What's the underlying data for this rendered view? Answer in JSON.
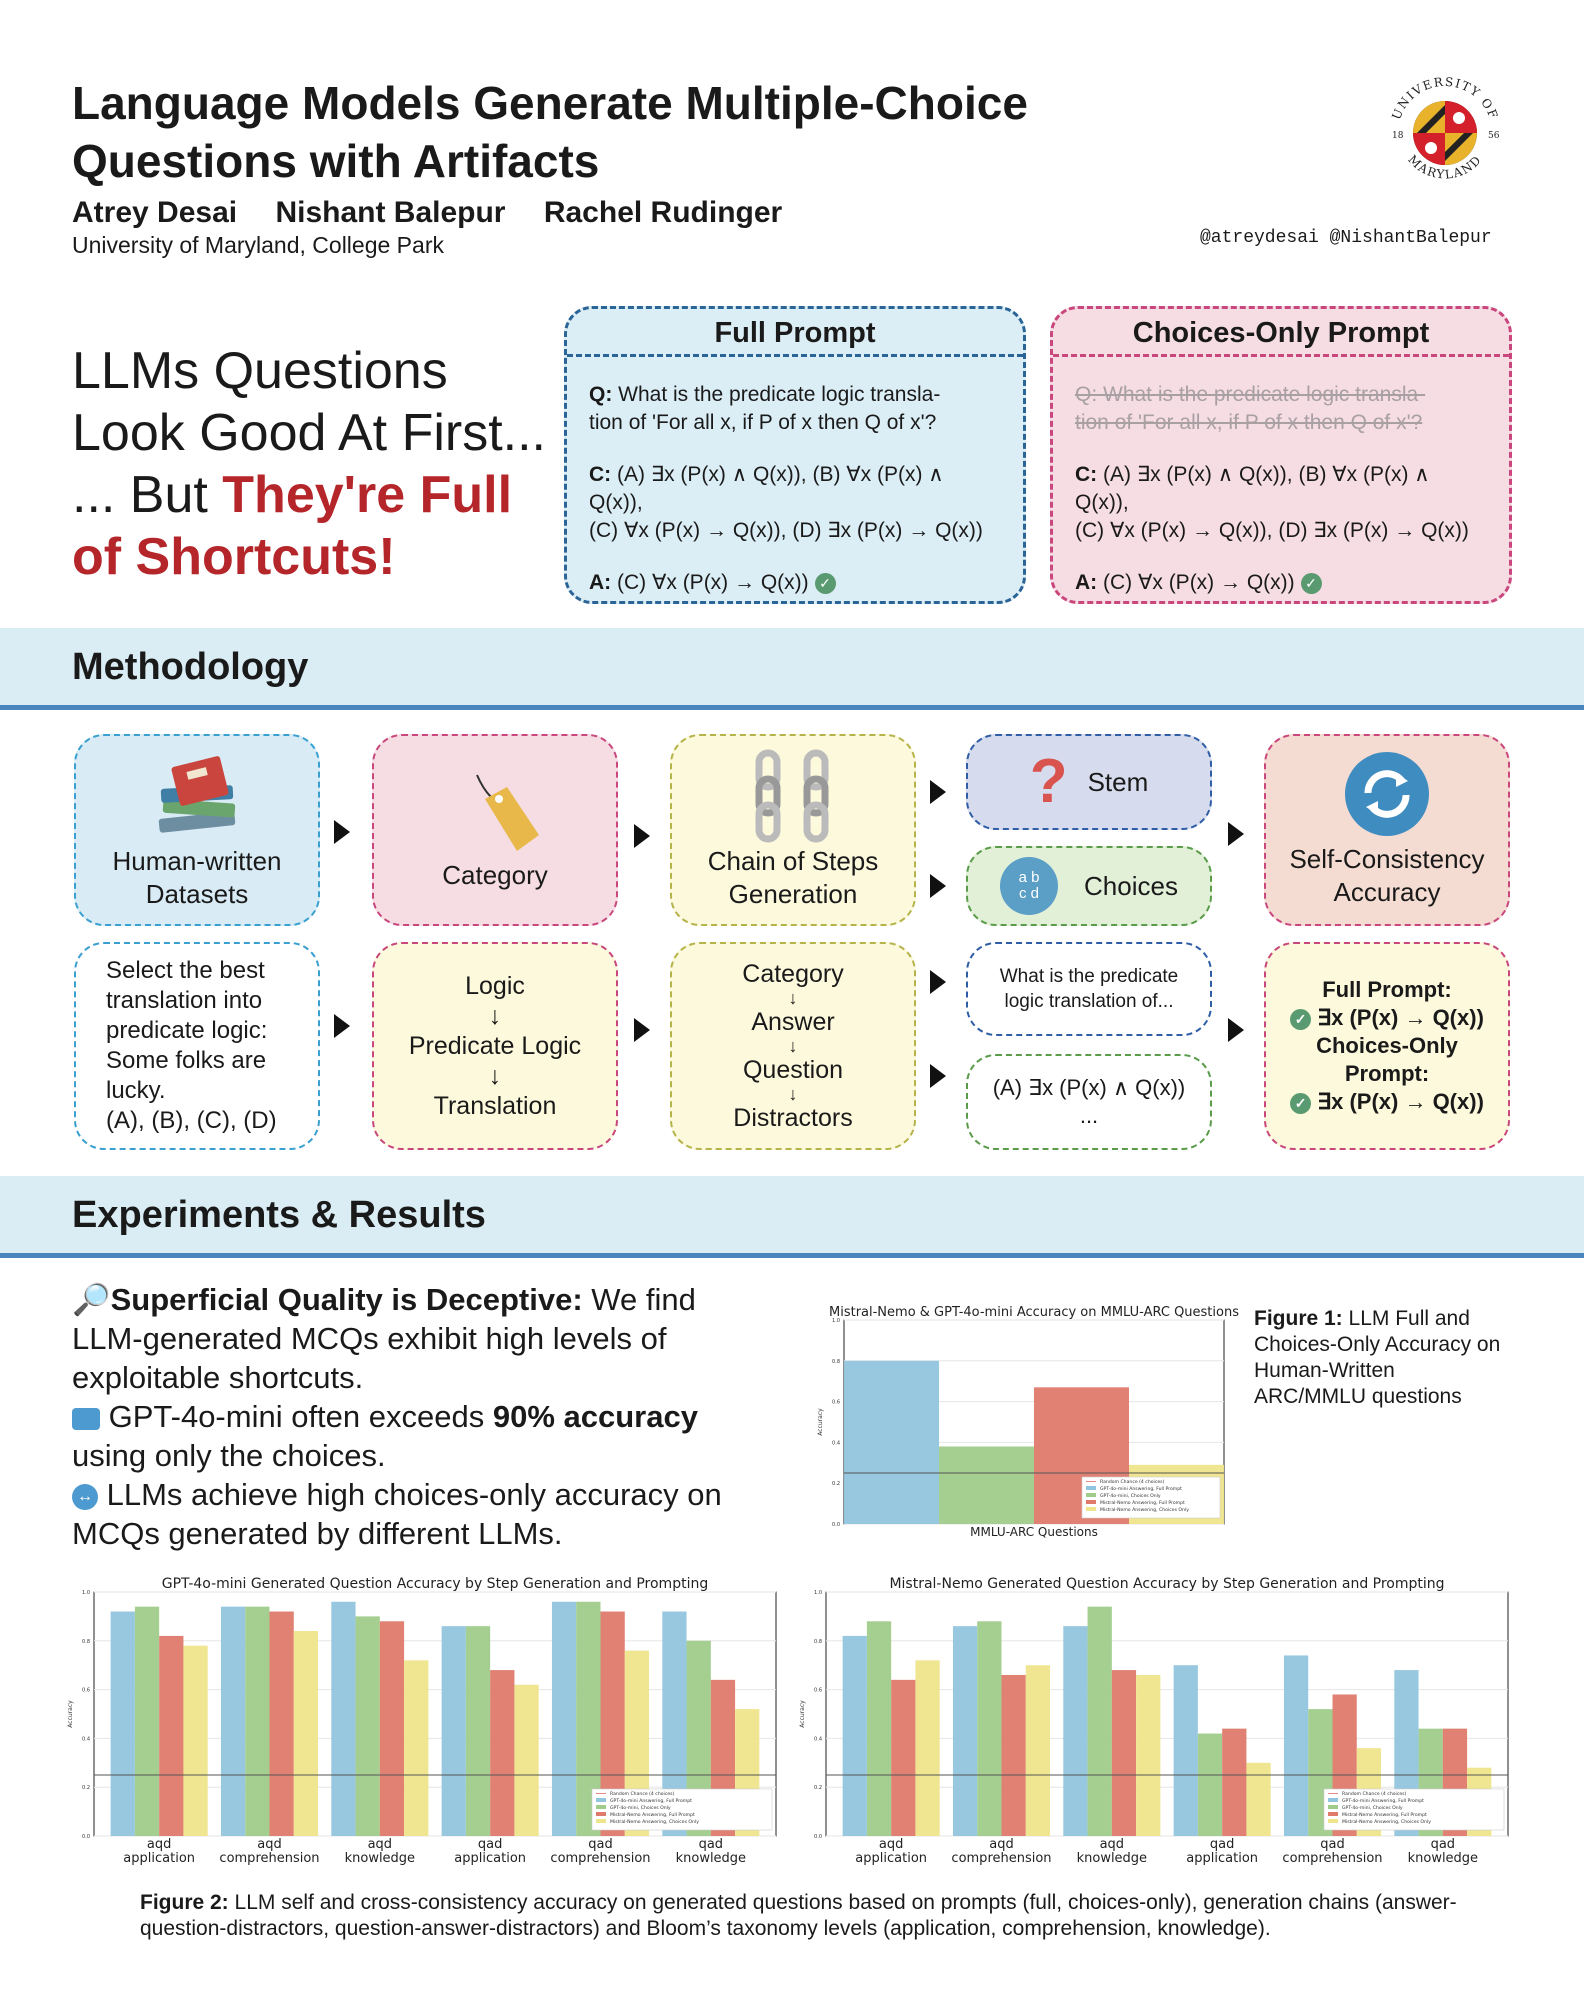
{
  "header": {
    "title_line1": "Language Models Generate Multiple-Choice",
    "title_line2": "Questions with Artifacts",
    "authors": [
      "Atrey Desai",
      "Nishant Balepur",
      "Rachel Rudinger"
    ],
    "affiliation": "University of Maryland, College Park",
    "handles": "@atreydesai @NishantBalepur",
    "seal": {
      "top": "UNIVERSITY OF",
      "bottom": "MARYLAND",
      "left_year": "18",
      "right_year": "56"
    }
  },
  "hook": {
    "line1": "LLMs Questions",
    "line2": "Look Good At First...",
    "line3_plain": "... But ",
    "line3_red": "They're Full",
    "line4_red": "of Shortcuts!"
  },
  "full_prompt": {
    "heading": "Full Prompt",
    "q_label": "Q:",
    "q_text_1": " What is the predicate logic transla-",
    "q_text_2": "tion of 'For all x, if P of x then Q of x'?",
    "c_label": "C:",
    "c_text_1": " (A) ∃x (P(x) ∧ Q(x)), (B) ∀x (P(x) ∧ Q(x)),",
    "c_text_2": "(C) ∀x (P(x) → Q(x)), (D) ∃x (P(x) → Q(x))",
    "a_label": "A:",
    "a_text": " (C) ∀x (P(x) → Q(x))"
  },
  "choices_prompt": {
    "heading": "Choices-Only Prompt",
    "q_line1": "Q: What is the predicate logic transla-",
    "q_line2": "tion of 'For all x, if P of x then Q of x'?",
    "c_label": "C:",
    "c_text_1": " (A) ∃x (P(x) ∧ Q(x)), (B) ∀x (P(x) ∧ Q(x)),",
    "c_text_2": "(C) ∀x (P(x) → Q(x)), (D) ∃x (P(x) → Q(x))",
    "a_label": "A:",
    "a_text": " (C) ∀x (P(x) → Q(x))"
  },
  "methodology": {
    "heading": "Methodology",
    "top": {
      "datasets_1": "Human-written",
      "datasets_2": "Datasets",
      "category": "Category",
      "chain_1": "Chain of Steps",
      "chain_2": "Generation",
      "stem": "Stem",
      "choices": "Choices",
      "choices_icon_1": "a b",
      "choices_icon_2": "c d",
      "sc_1": "Self-Consistency",
      "sc_2": "Accuracy"
    },
    "bottom": {
      "example_lines": [
        "Select the best",
        "translation into",
        "predicate logic:",
        "Some folks are",
        "lucky.",
        "(A), (B), (C), (D)"
      ],
      "cat_chain": [
        "Logic",
        "Predicate Logic",
        "Translation"
      ],
      "step_chain": [
        "Category",
        "Answer",
        "Question",
        "Distractors"
      ],
      "stem_ex_1": "What is the predicate",
      "stem_ex_2": "logic translation of...",
      "choice_ex_1": "(A) ∃x (P(x) ∧ Q(x))",
      "choice_ex_2": "...",
      "res_full_label": "Full Prompt:",
      "res_full_val": " ∃x (P(x) → Q(x))",
      "res_co_label_1": "Choices-Only",
      "res_co_label_2": "Prompt:",
      "res_co_val": " ∃x (P(x) → Q(x))"
    }
  },
  "results": {
    "heading": "Experiments & Results",
    "p1_bold": "Superficial Quality is Deceptive:",
    "p1_text": " We find LLM-generated MCQs exhibit high levels of exploitable shortcuts.",
    "p2_a": " GPT-4o-mini often exceeds ",
    "p2_bold": "90% accuracy",
    "p2_b": " using only the choices.",
    "p3": " LLMs achieve high choices-only accuracy on MCQs generated by different LLMs."
  },
  "fig1_caption": {
    "label": "Figure 1:",
    "text": " LLM Full and Choices-Only Accuracy on Human-Written ARC/MMLU questions"
  },
  "fig2_caption": {
    "label": "Figure 2:",
    "text": " LLM self and cross-consistency accuracy on generated questions based on prompts (full, choices-only), generation chains (answer-question-distractors, question-answer-distractors) and Bloom’s taxonomy levels (application, comprehension, knowledge)."
  },
  "colors": {
    "blue": "#92c5de",
    "green": "#9fcc8a",
    "red": "#df7a6c",
    "yellow": "#efe58c"
  },
  "chart_data": [
    {
      "type": "bar",
      "title": "Mistral-Nemo & GPT-4o-mini Accuracy on MMLU-ARC Questions",
      "xlabel": "MMLU-ARC Questions",
      "ylabel": "Accuracy",
      "ylim": [
        0,
        1.0
      ],
      "yticks": [
        "0.0",
        "0.2",
        "0.4",
        "0.6",
        "0.8",
        "1.0"
      ],
      "baseline": 0.25,
      "categories": [
        ""
      ],
      "legend": [
        "Random Chance (4 choices)",
        "GPT-4o-mini Answering, Full Prompt",
        "GPT-4o-mini, Choices Only",
        "Mistral-Nemo Answering, Full Prompt",
        "Mistral-Nemo Answering, Choices Only"
      ],
      "series": [
        {
          "name": "GPT-4o-mini Answering, Full Prompt",
          "values": [
            0.8
          ]
        },
        {
          "name": "GPT-4o-mini, Choices Only",
          "values": [
            0.38
          ]
        },
        {
          "name": "Mistral-Nemo Answering, Full Prompt",
          "values": [
            0.67
          ]
        },
        {
          "name": "Mistral-Nemo Answering, Choices Only",
          "values": [
            0.29
          ]
        }
      ]
    },
    {
      "type": "bar",
      "title": "GPT-4o-mini Generated Question Accuracy by Step Generation and Prompting",
      "xlabel": "",
      "ylabel": "Accuracy",
      "ylim": [
        0,
        1.0
      ],
      "yticks": [
        "0.0",
        "0.2",
        "0.4",
        "0.6",
        "0.8",
        "1.0"
      ],
      "baseline": 0.25,
      "categories": [
        [
          "aqd",
          "application"
        ],
        [
          "aqd",
          "comprehension"
        ],
        [
          "aqd",
          "knowledge"
        ],
        [
          "qad",
          "application"
        ],
        [
          "qad",
          "comprehension"
        ],
        [
          "qad",
          "knowledge"
        ]
      ],
      "legend": [
        "Random Chance (4 choices)",
        "GPT-4o-mini Answering, Full Prompt",
        "GPT-4o-mini, Choices Only",
        "Mistral-Nemo Answering, Full Prompt",
        "Mistral-Nemo Answering, Choices Only"
      ],
      "series": [
        {
          "name": "GPT-4o-mini Answering, Full Prompt",
          "values": [
            0.92,
            0.94,
            0.96,
            0.86,
            0.96,
            0.92
          ]
        },
        {
          "name": "GPT-4o-mini, Choices Only",
          "values": [
            0.94,
            0.94,
            0.9,
            0.86,
            0.96,
            0.8
          ]
        },
        {
          "name": "Mistral-Nemo Answering, Full Prompt",
          "values": [
            0.82,
            0.92,
            0.88,
            0.68,
            0.92,
            0.64
          ]
        },
        {
          "name": "Mistral-Nemo Answering, Choices Only",
          "values": [
            0.78,
            0.84,
            0.72,
            0.62,
            0.76,
            0.52
          ]
        }
      ]
    },
    {
      "type": "bar",
      "title": "Mistral-Nemo Generated Question Accuracy by Step Generation and Prompting",
      "xlabel": "",
      "ylabel": "Accuracy",
      "ylim": [
        0,
        1.0
      ],
      "yticks": [
        "0.0",
        "0.2",
        "0.4",
        "0.6",
        "0.8",
        "1.0"
      ],
      "baseline": 0.25,
      "categories": [
        [
          "aqd",
          "application"
        ],
        [
          "aqd",
          "comprehension"
        ],
        [
          "aqd",
          "knowledge"
        ],
        [
          "qad",
          "application"
        ],
        [
          "qad",
          "comprehension"
        ],
        [
          "qad",
          "knowledge"
        ]
      ],
      "legend": [
        "Random Chance (4 choices)",
        "GPT-4o-mini Answering, Full Prompt",
        "GPT-4o-mini, Choices Only",
        "Mistral-Nemo Answering, Full Prompt",
        "Mistral-Nemo Answering, Choices Only"
      ],
      "series": [
        {
          "name": "GPT-4o-mini Answering, Full Prompt",
          "values": [
            0.82,
            0.86,
            0.86,
            0.7,
            0.74,
            0.68
          ]
        },
        {
          "name": "GPT-4o-mini, Choices Only",
          "values": [
            0.88,
            0.88,
            0.94,
            0.42,
            0.52,
            0.44
          ]
        },
        {
          "name": "Mistral-Nemo Answering, Full Prompt",
          "values": [
            0.64,
            0.66,
            0.68,
            0.44,
            0.58,
            0.44
          ]
        },
        {
          "name": "Mistral-Nemo Answering, Choices Only",
          "values": [
            0.72,
            0.7,
            0.66,
            0.3,
            0.36,
            0.28
          ]
        }
      ]
    }
  ]
}
